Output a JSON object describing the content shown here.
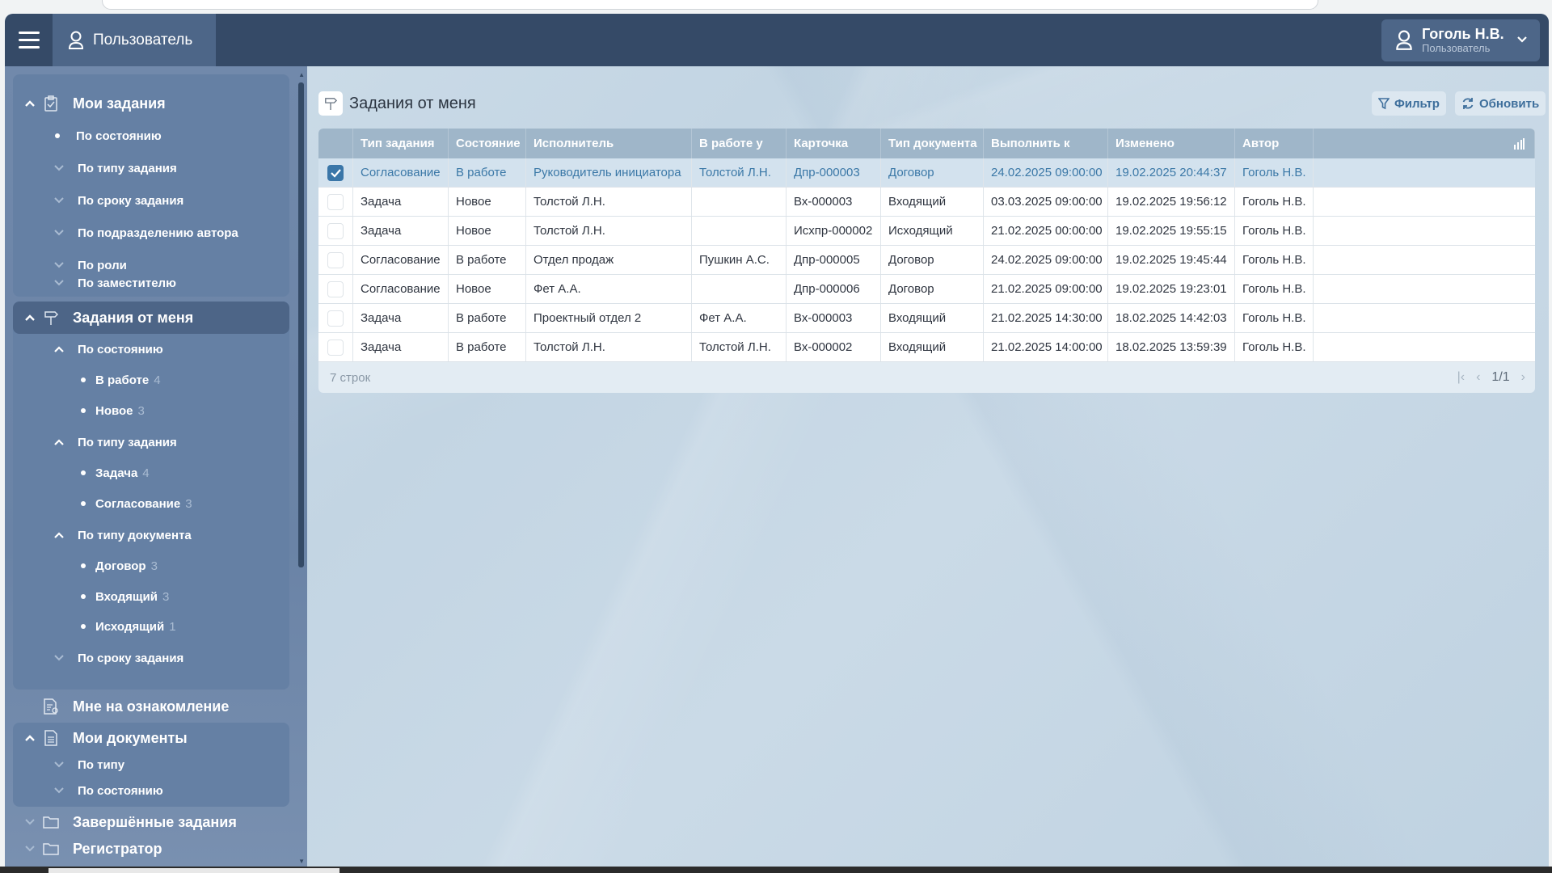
{
  "header": {
    "section_label": "Пользователь",
    "user": {
      "name": "Гоголь Н.В.",
      "role": "Пользователь"
    }
  },
  "sidebar": {
    "my_tasks": {
      "label": "Мои задания",
      "items": [
        "По состоянию",
        "По типу задания",
        "По сроку задания",
        "По подразделению автора",
        "По роли",
        "По заместителю"
      ]
    },
    "tasks_from_me": {
      "label": "Задания от меня",
      "by_state": {
        "label": "По состоянию",
        "items": [
          {
            "label": "В работе",
            "count": "4"
          },
          {
            "label": "Новое",
            "count": "3"
          }
        ]
      },
      "by_task_type": {
        "label": "По типу задания",
        "items": [
          {
            "label": "Задача",
            "count": "4"
          },
          {
            "label": "Согласование",
            "count": "3"
          }
        ]
      },
      "by_doc_type": {
        "label": "По типу документа",
        "items": [
          {
            "label": "Договор",
            "count": "3"
          },
          {
            "label": "Входящий",
            "count": "3"
          },
          {
            "label": "Исходящий",
            "count": "1"
          }
        ]
      },
      "by_deadline": "По сроку задания"
    },
    "for_review": "Мне на ознакомление",
    "my_documents": {
      "label": "Мои документы",
      "items": [
        "По типу",
        "По состоянию"
      ]
    },
    "completed": "Завершённые задания",
    "registrar": "Регистратор"
  },
  "main": {
    "title": "Задания от меня",
    "filter_label": "Фильтр",
    "refresh_label": "Обновить",
    "columns": [
      "Тип задания",
      "Состояние",
      "Исполнитель",
      "В работе у",
      "Карточка",
      "Тип документа",
      "Выполнить к",
      "Изменено",
      "Автор"
    ],
    "rows": [
      {
        "selected": true,
        "cells": [
          "Согласование",
          "В работе",
          "Руководитель инициатора",
          "Толстой Л.Н.",
          "Дпр-000003",
          "Договор",
          "24.02.2025 09:00:00",
          "19.02.2025 20:44:37",
          "Гоголь Н.В."
        ]
      },
      {
        "selected": false,
        "cells": [
          "Задача",
          "Новое",
          "Толстой Л.Н.",
          "",
          "Вх-000003",
          "Входящий",
          "03.03.2025 09:00:00",
          "19.02.2025 19:56:12",
          "Гоголь Н.В."
        ]
      },
      {
        "selected": false,
        "cells": [
          "Задача",
          "Новое",
          "Толстой Л.Н.",
          "",
          "Исхпр-000002",
          "Исходящий",
          "21.02.2025 00:00:00",
          "19.02.2025 19:55:15",
          "Гоголь Н.В."
        ]
      },
      {
        "selected": false,
        "cells": [
          "Согласование",
          "В работе",
          "Отдел продаж",
          "Пушкин А.С.",
          "Дпр-000005",
          "Договор",
          "24.02.2025 09:00:00",
          "19.02.2025 19:45:44",
          "Гоголь Н.В."
        ]
      },
      {
        "selected": false,
        "cells": [
          "Согласование",
          "Новое",
          "Фет А.А.",
          "",
          "Дпр-000006",
          "Договор",
          "21.02.2025 09:00:00",
          "19.02.2025 19:23:01",
          "Гоголь Н.В."
        ]
      },
      {
        "selected": false,
        "cells": [
          "Задача",
          "В работе",
          "Проектный отдел 2",
          "Фет А.А.",
          "Вх-000003",
          "Входящий",
          "21.02.2025 14:30:00",
          "18.02.2025 14:42:03",
          "Гоголь Н.В."
        ]
      },
      {
        "selected": false,
        "cells": [
          "Задача",
          "В работе",
          "Толстой Л.Н.",
          "Толстой Л.Н.",
          "Вх-000002",
          "Входящий",
          "21.02.2025 14:00:00",
          "18.02.2025 13:59:39",
          "Гоголь Н.В."
        ]
      }
    ],
    "row_count": "7 строк",
    "page": "1/1"
  },
  "colors": {
    "header": "#354a67",
    "sidebar": "#6c86a8",
    "accent": "#3a76a8",
    "selected_row": "#d3e2ee"
  }
}
